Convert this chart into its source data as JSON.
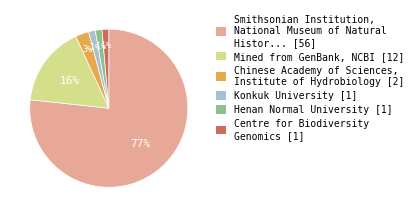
{
  "values": [
    56,
    12,
    2,
    1,
    1,
    1
  ],
  "colors": [
    "#e8a898",
    "#d4df8c",
    "#e8a84c",
    "#a8c0d4",
    "#8cc08c",
    "#cc6c5c"
  ],
  "legend_labels": [
    "Smithsonian Institution,\nNational Museum of Natural\nHistor... [56]",
    "Mined from GenBank, NCBI [12]",
    "Chinese Academy of Sciences,\nInstitute of Hydrobiology [2]",
    "Konkuk University [1]",
    "Henan Normal University [1]",
    "Centre for Biodiversity\nGenomics [1]"
  ],
  "background_color": "#ffffff",
  "startangle": 90,
  "legend_fontsize": 7.0,
  "pct_fontsize": 8
}
